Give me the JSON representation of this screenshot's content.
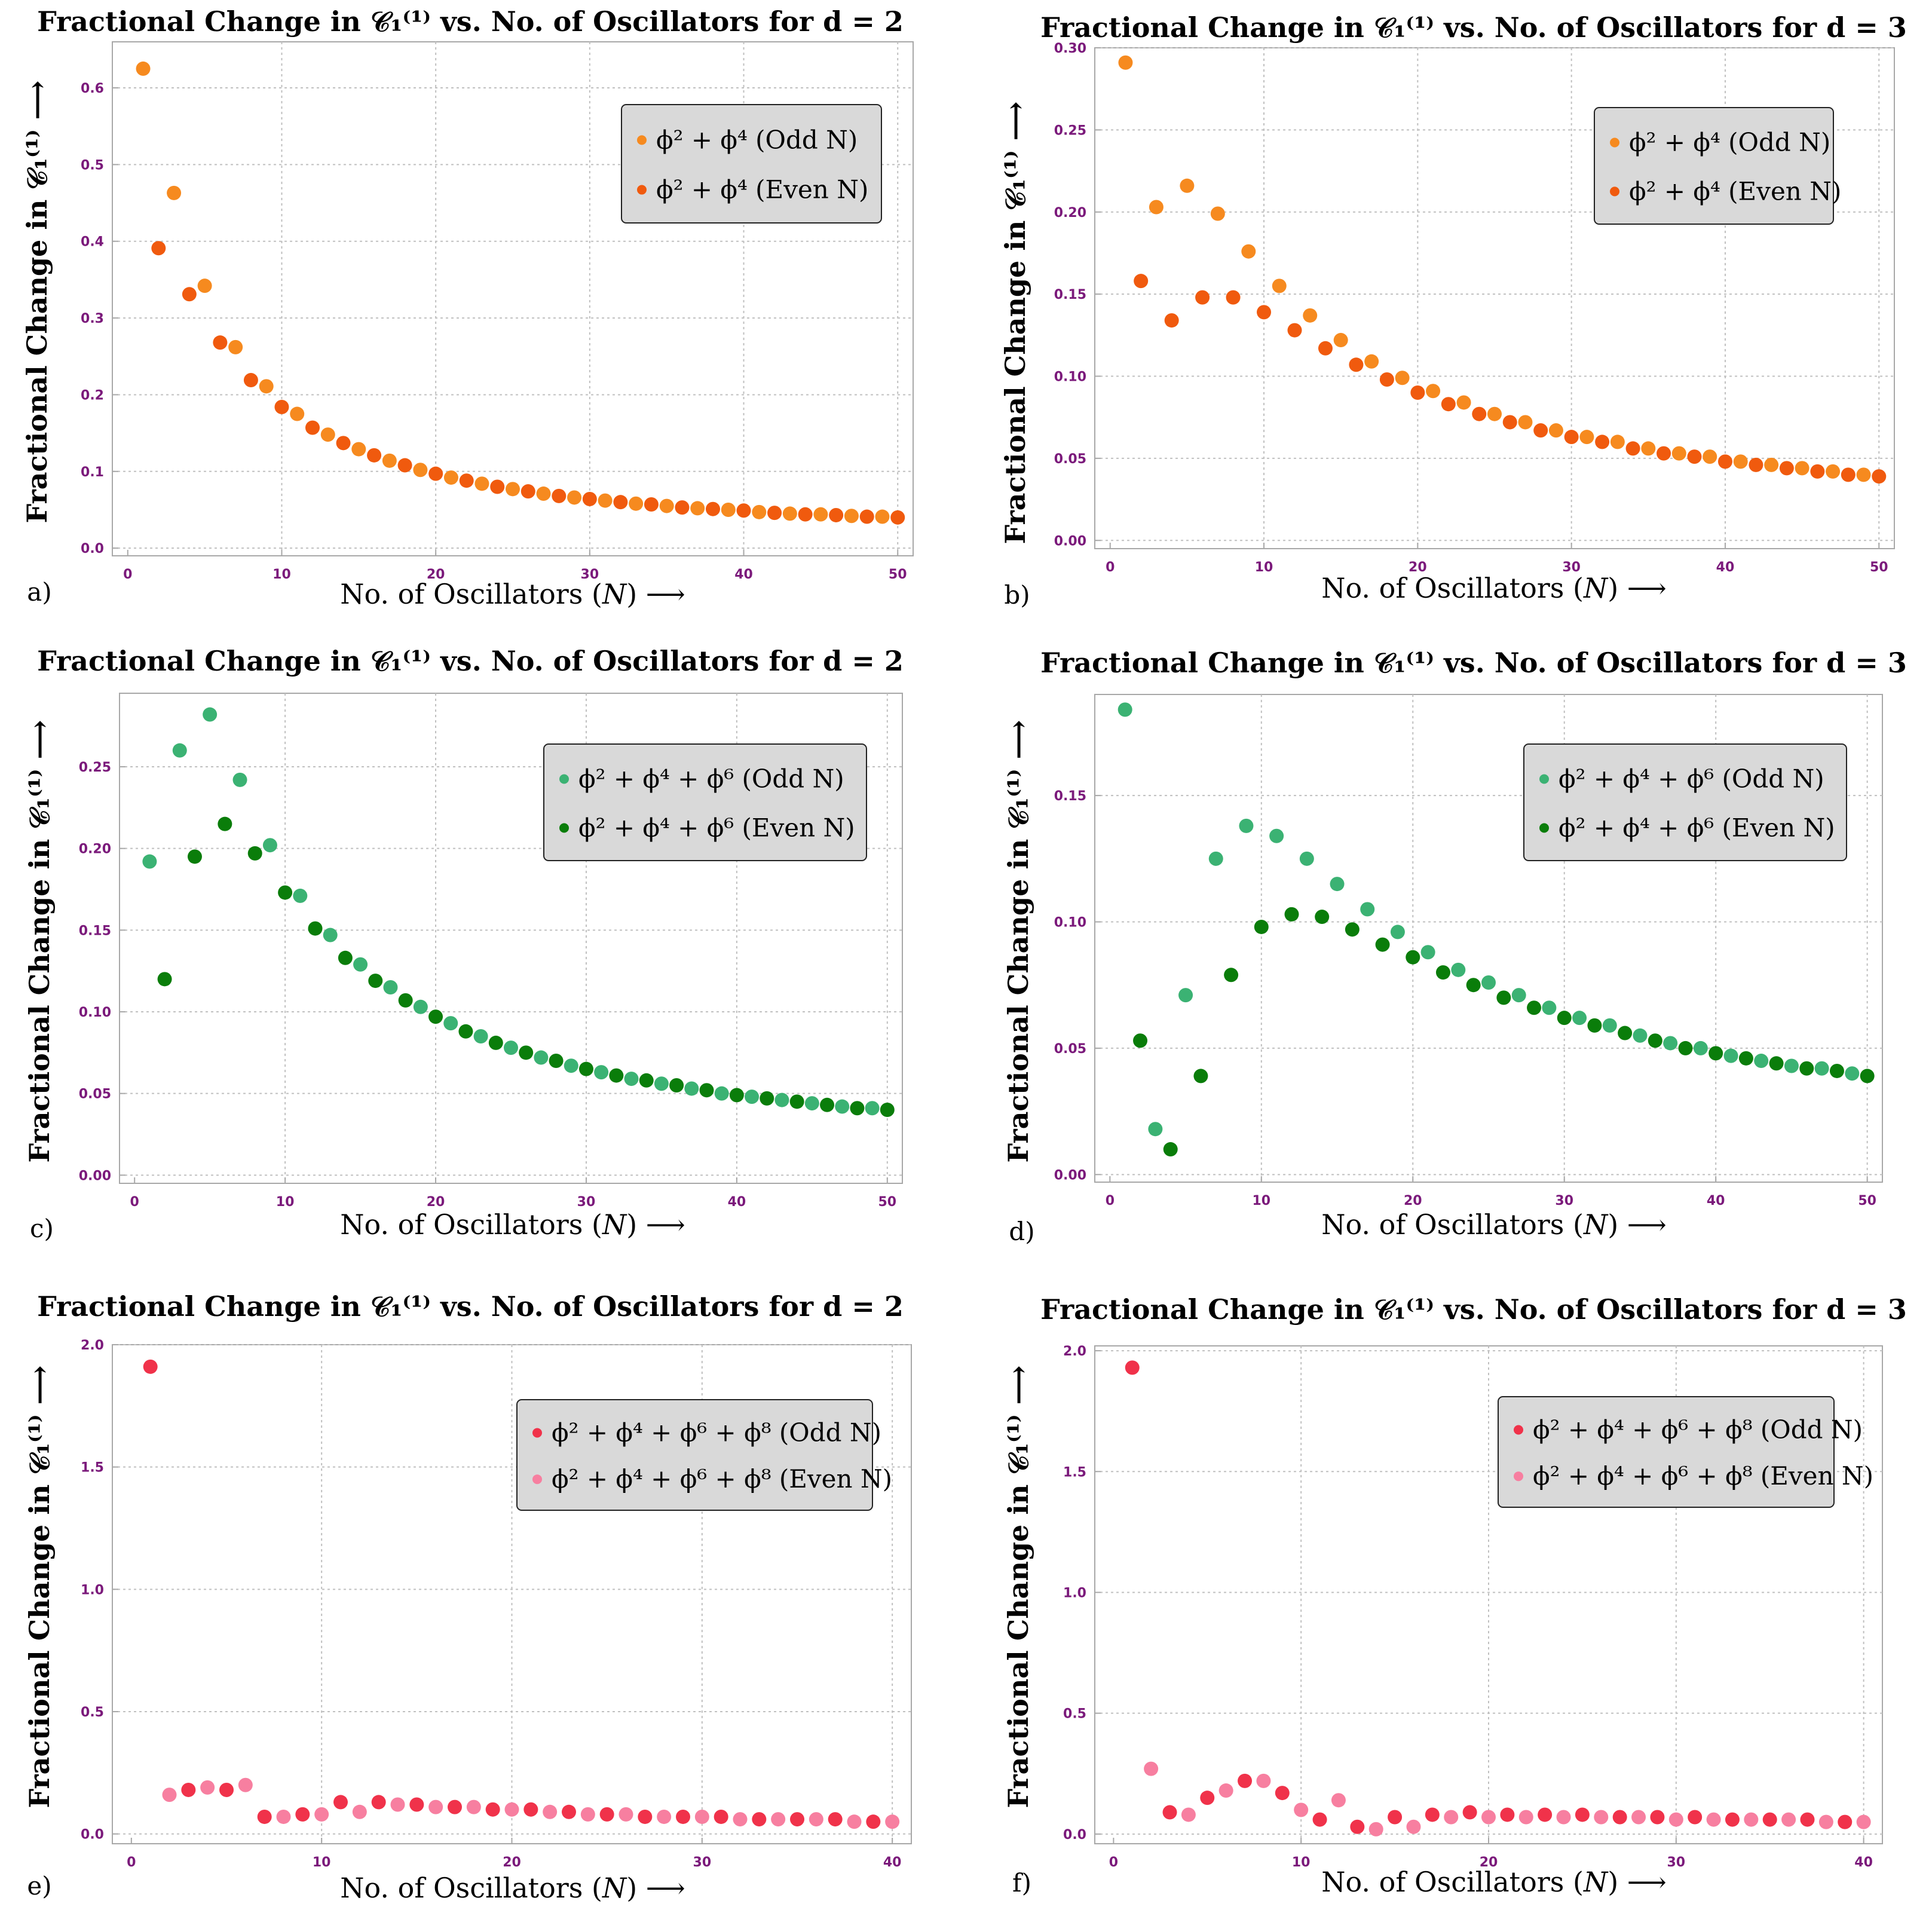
{
  "figure": {
    "panel_labels": [
      "a)",
      "b)",
      "c)",
      "d)",
      "e)",
      "f)"
    ]
  },
  "style": {
    "background": "#ffffff",
    "plot_background": "#ffffff",
    "frame_color": "#a8a8a8",
    "grid_color": "#c0c0c0",
    "tick_label_color": "#7b1a7b",
    "text_color": "#000000",
    "legend_bg": "#d9d9d9",
    "legend_border": "#222222"
  },
  "chart_data": [
    {
      "type": "scatter",
      "panel": "a)",
      "title": "Fractional Change in 𝒞₁⁽¹⁾ vs. No. of Oscillators for d = 2",
      "xlabel": "No. of Oscillators (𝑁) ⟶",
      "ylabel": "Fractional Change in 𝒞₁⁽¹⁾ ⟶",
      "xlim": [
        -1,
        51
      ],
      "ylim": [
        -0.01,
        0.66
      ],
      "xticks": [
        0,
        10,
        20,
        30,
        40,
        50
      ],
      "xtick_labels": [
        "0",
        "10",
        "20",
        "30",
        "40",
        "50"
      ],
      "yticks": [
        0.0,
        0.1,
        0.2,
        0.3,
        0.4,
        0.5,
        0.6
      ],
      "ytick_labels": [
        "0.0",
        "0.1",
        "0.2",
        "0.3",
        "0.4",
        "0.5",
        "0.6"
      ],
      "grid": true,
      "legend_position": "top-right",
      "series": [
        {
          "name": "ϕ² + ϕ⁴ (Odd N)",
          "color": "#f68a1f",
          "x": [
            1,
            3,
            5,
            7,
            9,
            11,
            13,
            15,
            17,
            19,
            21,
            23,
            25,
            27,
            29,
            31,
            33,
            35,
            37,
            39,
            41,
            43,
            45,
            47,
            49
          ],
          "y": [
            0.625,
            0.463,
            0.342,
            0.262,
            0.211,
            0.175,
            0.148,
            0.129,
            0.114,
            0.102,
            0.092,
            0.084,
            0.077,
            0.071,
            0.066,
            0.062,
            0.058,
            0.055,
            0.052,
            0.05,
            0.047,
            0.045,
            0.044,
            0.042,
            0.041
          ]
        },
        {
          "name": "ϕ² + ϕ⁴ (Even N)",
          "color": "#f05a0e",
          "x": [
            2,
            4,
            6,
            8,
            10,
            12,
            14,
            16,
            18,
            20,
            22,
            24,
            26,
            28,
            30,
            32,
            34,
            36,
            38,
            40,
            42,
            44,
            46,
            48,
            50
          ],
          "y": [
            0.391,
            0.331,
            0.268,
            0.219,
            0.184,
            0.157,
            0.137,
            0.121,
            0.108,
            0.097,
            0.088,
            0.08,
            0.074,
            0.068,
            0.064,
            0.06,
            0.057,
            0.053,
            0.051,
            0.049,
            0.046,
            0.044,
            0.043,
            0.041,
            0.04
          ]
        }
      ]
    },
    {
      "type": "scatter",
      "panel": "b)",
      "title": "Fractional Change in 𝒞₁⁽¹⁾ vs. No. of Oscillators for d = 3",
      "xlabel": "No. of Oscillators (𝑁) ⟶",
      "ylabel": "Fractional Change in 𝒞₁⁽¹⁾ ⟶",
      "xlim": [
        -1,
        51
      ],
      "ylim": [
        -0.005,
        0.3
      ],
      "xticks": [
        0,
        10,
        20,
        30,
        40,
        50
      ],
      "xtick_labels": [
        "0",
        "10",
        "20",
        "30",
        "40",
        "50"
      ],
      "yticks": [
        0.0,
        0.05,
        0.1,
        0.15,
        0.2,
        0.25,
        0.3
      ],
      "ytick_labels": [
        "0.00",
        "0.05",
        "0.10",
        "0.15",
        "0.20",
        "0.25",
        "0.30"
      ],
      "grid": true,
      "legend_position": "top-right",
      "series": [
        {
          "name": "ϕ² + ϕ⁴ (Odd N)",
          "color": "#f68a1f",
          "x": [
            1,
            3,
            5,
            7,
            9,
            11,
            13,
            15,
            17,
            19,
            21,
            23,
            25,
            27,
            29,
            31,
            33,
            35,
            37,
            39,
            41,
            43,
            45,
            47,
            49
          ],
          "y": [
            0.291,
            0.203,
            0.216,
            0.199,
            0.176,
            0.155,
            0.137,
            0.122,
            0.109,
            0.099,
            0.091,
            0.084,
            0.077,
            0.072,
            0.067,
            0.063,
            0.06,
            0.056,
            0.053,
            0.051,
            0.048,
            0.046,
            0.044,
            0.042,
            0.04
          ]
        },
        {
          "name": "ϕ² + ϕ⁴ (Even N)",
          "color": "#f05a0e",
          "x": [
            2,
            4,
            6,
            8,
            10,
            12,
            14,
            16,
            18,
            20,
            22,
            24,
            26,
            28,
            30,
            32,
            34,
            36,
            38,
            40,
            42,
            44,
            46,
            48,
            50
          ],
          "y": [
            0.158,
            0.134,
            0.148,
            0.148,
            0.139,
            0.128,
            0.117,
            0.107,
            0.098,
            0.09,
            0.083,
            0.077,
            0.072,
            0.067,
            0.063,
            0.06,
            0.056,
            0.053,
            0.051,
            0.048,
            0.046,
            0.044,
            0.042,
            0.04,
            0.039
          ]
        }
      ]
    },
    {
      "type": "scatter",
      "panel": "c)",
      "title": "Fractional Change in 𝒞₁⁽¹⁾ vs. No. of Oscillators for d = 2",
      "xlabel": "No. of Oscillators (𝑁) ⟶",
      "ylabel": "Fractional Change in 𝒞₁⁽¹⁾ ⟶",
      "xlim": [
        -1,
        51
      ],
      "ylim": [
        -0.005,
        0.295
      ],
      "xticks": [
        0,
        10,
        20,
        30,
        40,
        50
      ],
      "xtick_labels": [
        "0",
        "10",
        "20",
        "30",
        "40",
        "50"
      ],
      "yticks": [
        0.0,
        0.05,
        0.1,
        0.15,
        0.2,
        0.25
      ],
      "ytick_labels": [
        "0.00",
        "0.05",
        "0.10",
        "0.15",
        "0.20",
        "0.25"
      ],
      "grid": true,
      "legend_position": "top-right",
      "series": [
        {
          "name": "ϕ² + ϕ⁴ + ϕ⁶ (Odd N)",
          "color": "#3bb273",
          "x": [
            1,
            3,
            5,
            7,
            9,
            11,
            13,
            15,
            17,
            19,
            21,
            23,
            25,
            27,
            29,
            31,
            33,
            35,
            37,
            39,
            41,
            43,
            45,
            47,
            49
          ],
          "y": [
            0.192,
            0.26,
            0.282,
            0.242,
            0.202,
            0.171,
            0.147,
            0.129,
            0.115,
            0.103,
            0.093,
            0.085,
            0.078,
            0.072,
            0.067,
            0.063,
            0.059,
            0.056,
            0.053,
            0.05,
            0.048,
            0.046,
            0.044,
            0.042,
            0.041
          ]
        },
        {
          "name": "ϕ² + ϕ⁴ + ϕ⁶ (Even N)",
          "color": "#0a7d0a",
          "x": [
            2,
            4,
            6,
            8,
            10,
            12,
            14,
            16,
            18,
            20,
            22,
            24,
            26,
            28,
            30,
            32,
            34,
            36,
            38,
            40,
            42,
            44,
            46,
            48,
            50
          ],
          "y": [
            0.12,
            0.195,
            0.215,
            0.197,
            0.173,
            0.151,
            0.133,
            0.119,
            0.107,
            0.097,
            0.088,
            0.081,
            0.075,
            0.07,
            0.065,
            0.061,
            0.058,
            0.055,
            0.052,
            0.049,
            0.047,
            0.045,
            0.043,
            0.041,
            0.04
          ]
        }
      ]
    },
    {
      "type": "scatter",
      "panel": "d)",
      "title": "Fractional Change in 𝒞₁⁽¹⁾ vs. No. of Oscillators for d = 3",
      "xlabel": "No. of Oscillators (𝑁) ⟶",
      "ylabel": "Fractional Change in 𝒞₁⁽¹⁾ ⟶",
      "xlim": [
        -1,
        51
      ],
      "ylim": [
        -0.003,
        0.19
      ],
      "xticks": [
        0,
        10,
        20,
        30,
        40,
        50
      ],
      "xtick_labels": [
        "0",
        "10",
        "20",
        "30",
        "40",
        "50"
      ],
      "yticks": [
        0.0,
        0.05,
        0.1,
        0.15
      ],
      "ytick_labels": [
        "0.00",
        "0.05",
        "0.10",
        "0.15"
      ],
      "grid": true,
      "legend_position": "top-right",
      "series": [
        {
          "name": "ϕ² + ϕ⁴ + ϕ⁶ (Odd N)",
          "color": "#3bb273",
          "x": [
            1,
            3,
            5,
            7,
            9,
            11,
            13,
            15,
            17,
            19,
            21,
            23,
            25,
            27,
            29,
            31,
            33,
            35,
            37,
            39,
            41,
            43,
            45,
            47,
            49
          ],
          "y": [
            0.184,
            0.018,
            0.071,
            0.125,
            0.138,
            0.134,
            0.125,
            0.115,
            0.105,
            0.096,
            0.088,
            0.081,
            0.076,
            0.071,
            0.066,
            0.062,
            0.059,
            0.055,
            0.052,
            0.05,
            0.047,
            0.045,
            0.043,
            0.042,
            0.04
          ]
        },
        {
          "name": "ϕ² + ϕ⁴ + ϕ⁶ (Even N)",
          "color": "#0a7d0a",
          "x": [
            2,
            4,
            6,
            8,
            10,
            12,
            14,
            16,
            18,
            20,
            22,
            24,
            26,
            28,
            30,
            32,
            34,
            36,
            38,
            40,
            42,
            44,
            46,
            48,
            50
          ],
          "y": [
            0.053,
            0.01,
            0.039,
            0.079,
            0.098,
            0.103,
            0.102,
            0.097,
            0.091,
            0.086,
            0.08,
            0.075,
            0.07,
            0.066,
            0.062,
            0.059,
            0.056,
            0.053,
            0.05,
            0.048,
            0.046,
            0.044,
            0.042,
            0.041,
            0.039
          ]
        }
      ]
    },
    {
      "type": "scatter",
      "panel": "e)",
      "title": "Fractional Change in 𝒞₁⁽¹⁾ vs. No. of Oscillators for d = 2",
      "xlabel": "No. of Oscillators (𝑁) ⟶",
      "ylabel": "Fractional Change in 𝒞₁⁽¹⁾ ⟶",
      "xlim": [
        -1,
        41
      ],
      "ylim": [
        -0.04,
        2.0
      ],
      "xticks": [
        0,
        10,
        20,
        30,
        40
      ],
      "xtick_labels": [
        "0",
        "10",
        "20",
        "30",
        "40"
      ],
      "yticks": [
        0.0,
        0.5,
        1.0,
        1.5,
        2.0
      ],
      "ytick_labels": [
        "0.0",
        "0.5",
        "1.0",
        "1.5",
        "2.0"
      ],
      "grid": true,
      "legend_position": "top-right",
      "series": [
        {
          "name": "ϕ² + ϕ⁴ + ϕ⁶ + ϕ⁸ (Odd N)",
          "color": "#f0324a",
          "x": [
            1,
            3,
            5,
            7,
            9,
            11,
            13,
            15,
            17,
            19,
            21,
            23,
            25,
            27,
            29,
            31,
            33,
            35,
            37,
            39
          ],
          "y": [
            1.91,
            0.18,
            0.18,
            0.07,
            0.08,
            0.13,
            0.13,
            0.12,
            0.11,
            0.1,
            0.1,
            0.09,
            0.08,
            0.07,
            0.07,
            0.07,
            0.06,
            0.06,
            0.06,
            0.05
          ]
        },
        {
          "name": "ϕ² + ϕ⁴ + ϕ⁶ + ϕ⁸ (Even N)",
          "color": "#f77fa0",
          "x": [
            2,
            4,
            6,
            8,
            10,
            12,
            14,
            16,
            18,
            20,
            22,
            24,
            26,
            28,
            30,
            32,
            34,
            36,
            38,
            40
          ],
          "y": [
            0.16,
            0.19,
            0.2,
            0.07,
            0.08,
            0.09,
            0.12,
            0.11,
            0.11,
            0.1,
            0.09,
            0.08,
            0.08,
            0.07,
            0.07,
            0.06,
            0.06,
            0.06,
            0.05,
            0.05
          ]
        }
      ]
    },
    {
      "type": "scatter",
      "panel": "f)",
      "title": "Fractional Change in 𝒞₁⁽¹⁾ vs. No. of Oscillators for d = 3",
      "xlabel": "No. of Oscillators (𝑁) ⟶",
      "ylabel": "Fractional Change in 𝒞₁⁽¹⁾ ⟶",
      "xlim": [
        -1,
        41
      ],
      "ylim": [
        -0.04,
        2.02
      ],
      "xticks": [
        0,
        10,
        20,
        30,
        40
      ],
      "xtick_labels": [
        "0",
        "10",
        "20",
        "30",
        "40"
      ],
      "yticks": [
        0.0,
        0.5,
        1.0,
        1.5,
        2.0
      ],
      "ytick_labels": [
        "0.0",
        "0.5",
        "1.0",
        "1.5",
        "2.0"
      ],
      "grid": true,
      "legend_position": "top-right",
      "series": [
        {
          "name": "ϕ² + ϕ⁴ + ϕ⁶ + ϕ⁸ (Odd N)",
          "color": "#f0324a",
          "x": [
            1,
            3,
            5,
            7,
            9,
            11,
            13,
            15,
            17,
            19,
            21,
            23,
            25,
            27,
            29,
            31,
            33,
            35,
            37,
            39
          ],
          "y": [
            1.93,
            0.09,
            0.15,
            0.22,
            0.17,
            0.06,
            0.03,
            0.07,
            0.08,
            0.09,
            0.08,
            0.08,
            0.08,
            0.07,
            0.07,
            0.07,
            0.06,
            0.06,
            0.06,
            0.05
          ]
        },
        {
          "name": "ϕ² + ϕ⁴ + ϕ⁶ + ϕ⁸ (Even N)",
          "color": "#f77fa0",
          "x": [
            2,
            4,
            6,
            8,
            10,
            12,
            14,
            16,
            18,
            20,
            22,
            24,
            26,
            28,
            30,
            32,
            34,
            36,
            38,
            40
          ],
          "y": [
            0.27,
            0.08,
            0.18,
            0.22,
            0.1,
            0.14,
            0.02,
            0.03,
            0.07,
            0.07,
            0.07,
            0.07,
            0.07,
            0.07,
            0.06,
            0.06,
            0.06,
            0.06,
            0.05,
            0.05
          ]
        }
      ]
    }
  ]
}
